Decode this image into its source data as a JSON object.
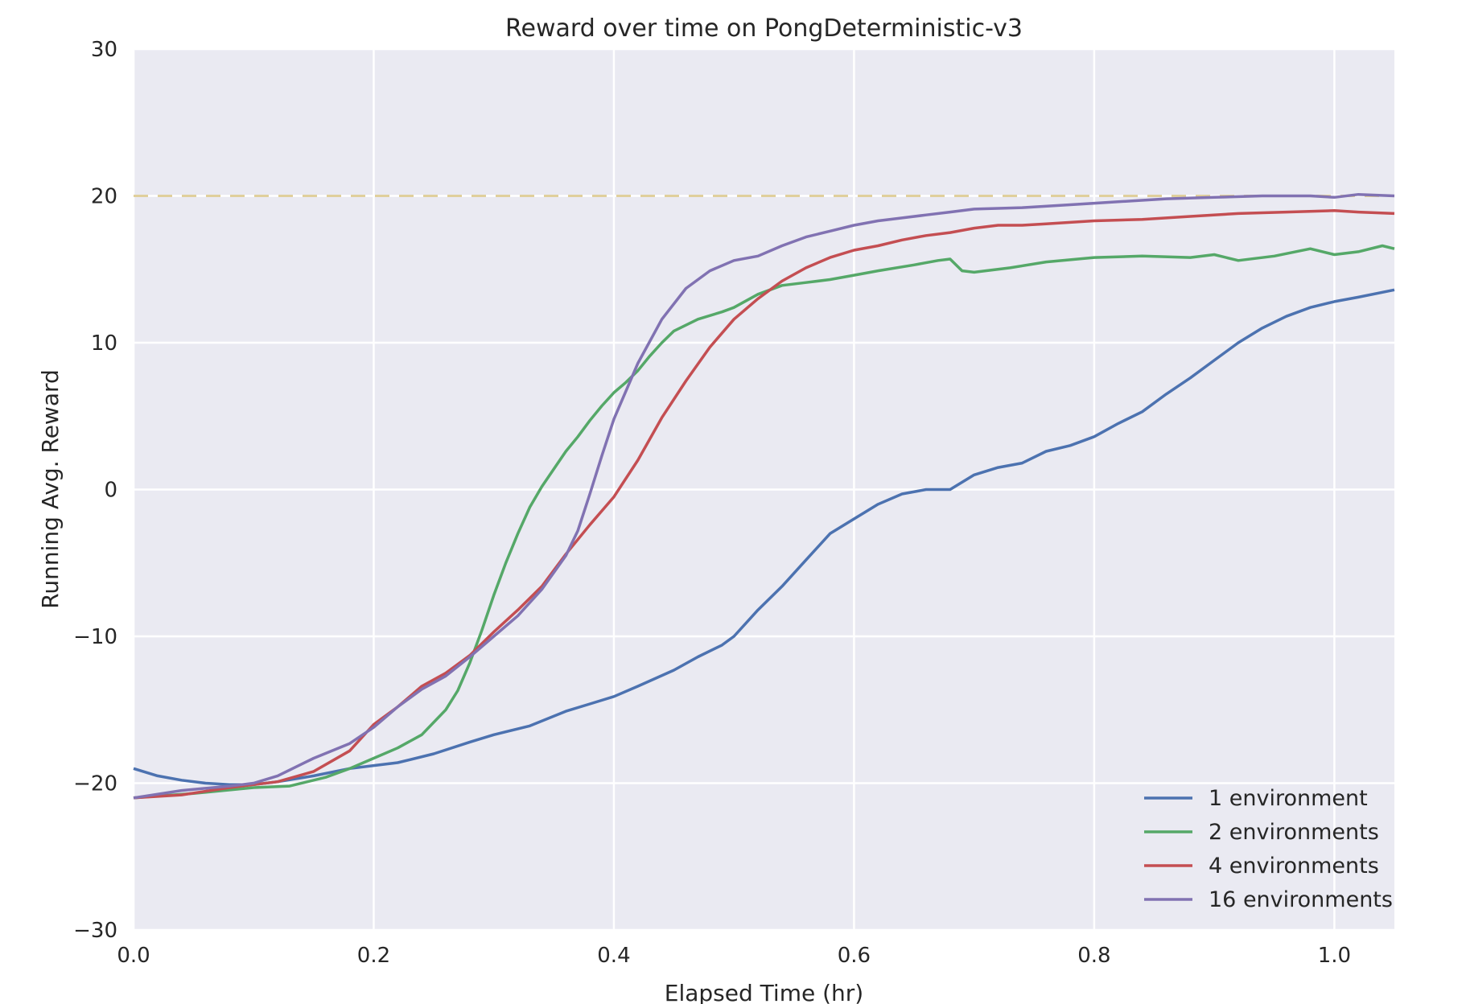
{
  "chart_data": {
    "type": "line",
    "title": "Reward over time on PongDeterministic-v3",
    "xlabel": "Elapsed Time (hr)",
    "ylabel": "Running Avg. Reward",
    "xlim": [
      0,
      1.05
    ],
    "ylim": [
      -30,
      30
    ],
    "xticks": [
      0.0,
      0.2,
      0.4,
      0.6,
      0.8,
      1.0
    ],
    "xtick_labels": [
      "0.0",
      "0.2",
      "0.4",
      "0.6",
      "0.8",
      "1.0"
    ],
    "yticks": [
      -30,
      -20,
      -10,
      0,
      10,
      20,
      30
    ],
    "ytick_labels": [
      "−30",
      "−20",
      "−10",
      "0",
      "10",
      "20",
      "30"
    ],
    "grid": true,
    "legend_position": "bottom-right",
    "reference_line": {
      "y": 20,
      "color": "#e0cf9c",
      "style": "dashed"
    },
    "series": [
      {
        "name": "1 environment",
        "color": "#4c72b0",
        "x": [
          0,
          0.02,
          0.04,
          0.06,
          0.08,
          0.1,
          0.12,
          0.15,
          0.18,
          0.2,
          0.22,
          0.25,
          0.28,
          0.3,
          0.33,
          0.36,
          0.38,
          0.4,
          0.42,
          0.45,
          0.47,
          0.49,
          0.5,
          0.52,
          0.54,
          0.56,
          0.58,
          0.6,
          0.62,
          0.64,
          0.66,
          0.68,
          0.7,
          0.72,
          0.74,
          0.76,
          0.78,
          0.8,
          0.82,
          0.84,
          0.86,
          0.88,
          0.9,
          0.92,
          0.94,
          0.96,
          0.98,
          1.0,
          1.02,
          1.05
        ],
        "y": [
          -19,
          -19.5,
          -19.8,
          -20,
          -20.1,
          -20.1,
          -19.9,
          -19.5,
          -19,
          -18.8,
          -18.6,
          -18,
          -17.2,
          -16.7,
          -16.1,
          -15.1,
          -14.6,
          -14.1,
          -13.4,
          -12.3,
          -11.4,
          -10.6,
          -10,
          -8.2,
          -6.6,
          -4.8,
          -3,
          -2,
          -1,
          -0.3,
          0,
          0,
          1,
          1.5,
          1.8,
          2.6,
          3,
          3.6,
          4.5,
          5.3,
          6.5,
          7.6,
          8.8,
          10,
          11,
          11.8,
          12.4,
          12.8,
          13.1,
          13.6
        ]
      },
      {
        "name": "2 environments",
        "color": "#55a868",
        "x": [
          0,
          0.05,
          0.1,
          0.13,
          0.16,
          0.18,
          0.2,
          0.22,
          0.24,
          0.26,
          0.27,
          0.28,
          0.29,
          0.3,
          0.31,
          0.32,
          0.33,
          0.34,
          0.35,
          0.36,
          0.37,
          0.38,
          0.39,
          0.4,
          0.41,
          0.42,
          0.43,
          0.44,
          0.45,
          0.47,
          0.49,
          0.5,
          0.52,
          0.54,
          0.56,
          0.58,
          0.6,
          0.62,
          0.65,
          0.67,
          0.68,
          0.69,
          0.7,
          0.73,
          0.76,
          0.8,
          0.84,
          0.88,
          0.9,
          0.92,
          0.95,
          0.98,
          1.0,
          1.02,
          1.04,
          1.05
        ],
        "y": [
          -21,
          -20.7,
          -20.3,
          -20.2,
          -19.6,
          -19,
          -18.3,
          -17.6,
          -16.7,
          -15,
          -13.7,
          -11.8,
          -9.6,
          -7.2,
          -5,
          -3,
          -1.2,
          0.2,
          1.4,
          2.6,
          3.6,
          4.7,
          5.7,
          6.6,
          7.3,
          8.1,
          9.1,
          10,
          10.8,
          11.6,
          12.1,
          12.4,
          13.3,
          13.9,
          14.1,
          14.3,
          14.6,
          14.9,
          15.3,
          15.6,
          15.7,
          14.9,
          14.8,
          15.1,
          15.5,
          15.8,
          15.9,
          15.8,
          16,
          15.6,
          15.9,
          16.4,
          16,
          16.2,
          16.6,
          16.4
        ]
      },
      {
        "name": "4 environments",
        "color": "#c44e52",
        "x": [
          0,
          0.04,
          0.08,
          0.1,
          0.12,
          0.15,
          0.18,
          0.2,
          0.22,
          0.24,
          0.26,
          0.28,
          0.3,
          0.32,
          0.34,
          0.36,
          0.38,
          0.4,
          0.42,
          0.44,
          0.46,
          0.48,
          0.5,
          0.52,
          0.54,
          0.56,
          0.58,
          0.6,
          0.62,
          0.64,
          0.66,
          0.68,
          0.7,
          0.72,
          0.74,
          0.76,
          0.8,
          0.84,
          0.88,
          0.92,
          0.96,
          1.0,
          1.02,
          1.05
        ],
        "y": [
          -21,
          -20.8,
          -20.3,
          -20.1,
          -19.9,
          -19.2,
          -17.8,
          -16,
          -14.8,
          -13.4,
          -12.5,
          -11.3,
          -9.7,
          -8.2,
          -6.6,
          -4.4,
          -2.4,
          -0.5,
          2,
          4.9,
          7.4,
          9.7,
          11.6,
          13,
          14.2,
          15.1,
          15.8,
          16.3,
          16.6,
          17,
          17.3,
          17.5,
          17.8,
          18,
          18,
          18.1,
          18.3,
          18.4,
          18.6,
          18.8,
          18.9,
          19,
          18.9,
          18.8
        ]
      },
      {
        "name": "16 environments",
        "color": "#8172b2",
        "x": [
          0,
          0.04,
          0.08,
          0.1,
          0.12,
          0.15,
          0.18,
          0.2,
          0.22,
          0.24,
          0.26,
          0.28,
          0.3,
          0.32,
          0.34,
          0.36,
          0.37,
          0.38,
          0.39,
          0.4,
          0.42,
          0.44,
          0.46,
          0.48,
          0.5,
          0.52,
          0.54,
          0.56,
          0.58,
          0.6,
          0.62,
          0.64,
          0.66,
          0.68,
          0.7,
          0.74,
          0.78,
          0.82,
          0.86,
          0.9,
          0.94,
          0.98,
          1.0,
          1.02,
          1.05
        ],
        "y": [
          -21,
          -20.5,
          -20.2,
          -20,
          -19.5,
          -18.3,
          -17.3,
          -16.2,
          -14.8,
          -13.6,
          -12.7,
          -11.4,
          -10,
          -8.6,
          -6.8,
          -4.5,
          -2.8,
          -0.3,
          2.3,
          4.8,
          8.6,
          11.6,
          13.7,
          14.9,
          15.6,
          15.9,
          16.6,
          17.2,
          17.6,
          18,
          18.3,
          18.5,
          18.7,
          18.9,
          19.1,
          19.2,
          19.4,
          19.6,
          19.8,
          19.9,
          20,
          20,
          19.9,
          20.1,
          20
        ]
      }
    ]
  }
}
